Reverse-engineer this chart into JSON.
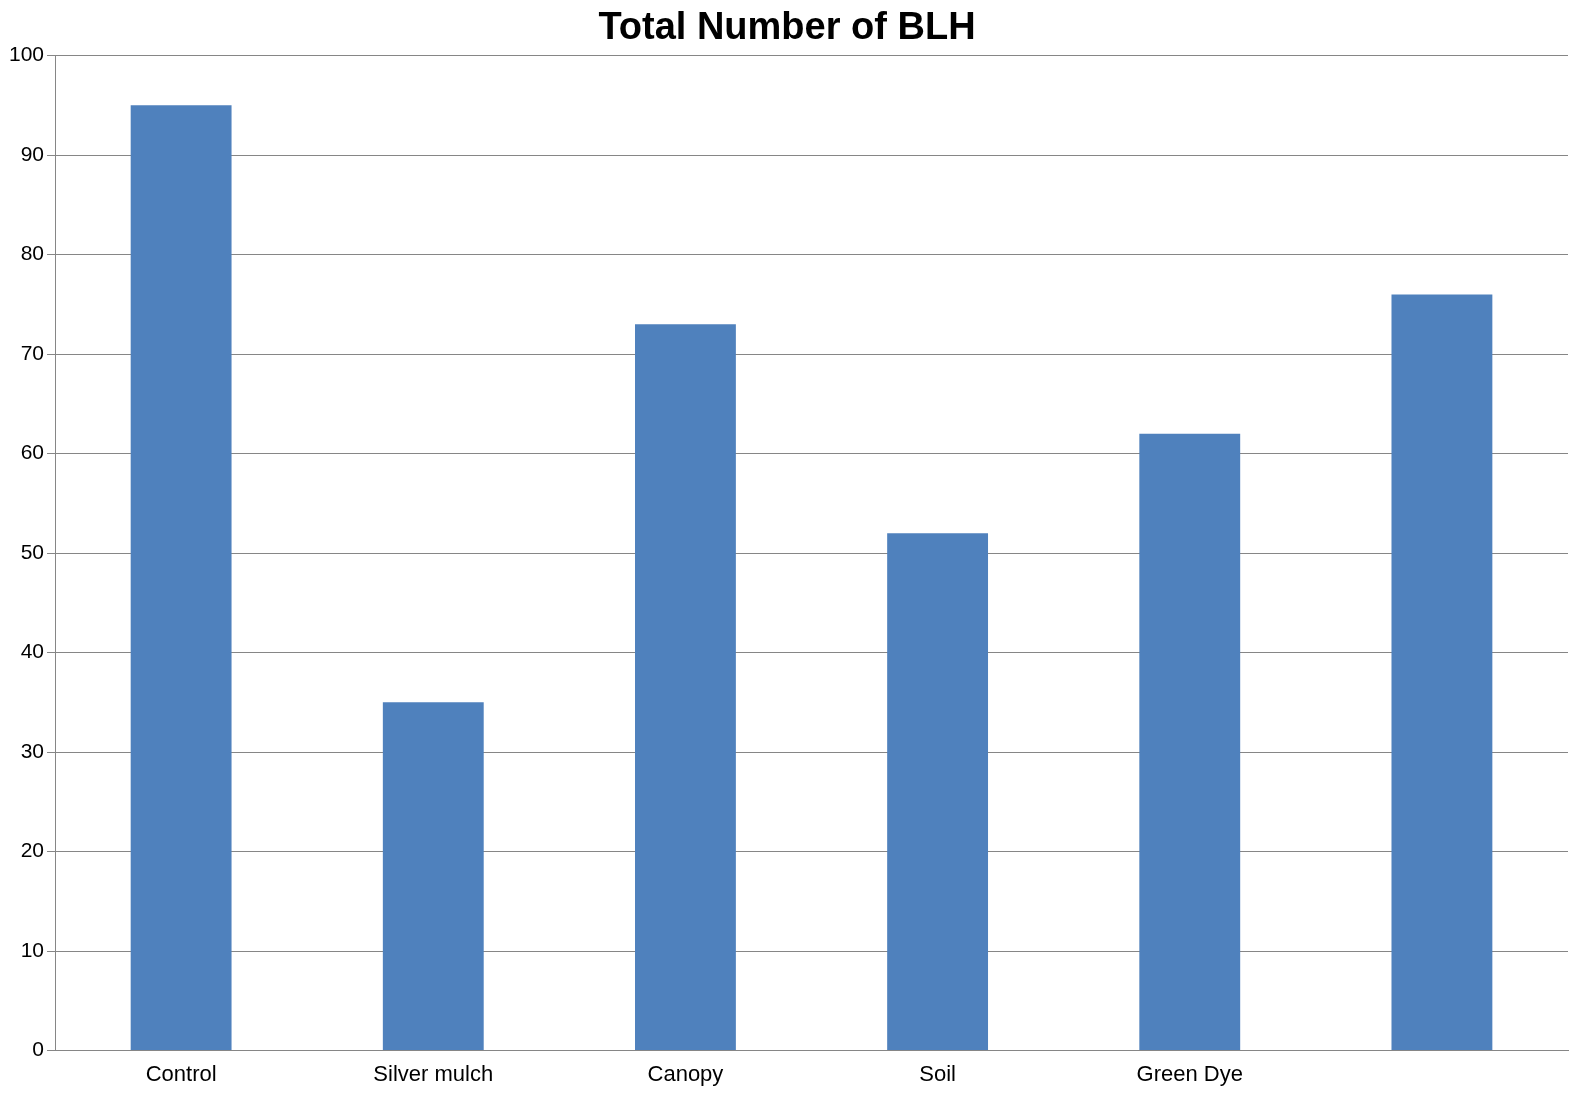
{
  "chart_data": {
    "type": "bar",
    "title": "Total Number of BLH",
    "categories": [
      "Control",
      "Silver mulch",
      "Canopy",
      "Soil",
      "Green Dye",
      null
    ],
    "values": [
      95,
      35,
      73,
      52,
      62,
      76
    ],
    "color": "#4f81bd",
    "ylim": [
      0,
      100
    ],
    "yticks": [
      0,
      10,
      20,
      30,
      40,
      50,
      60,
      70,
      80,
      90,
      100
    ],
    "grid": "y",
    "legend": false
  }
}
